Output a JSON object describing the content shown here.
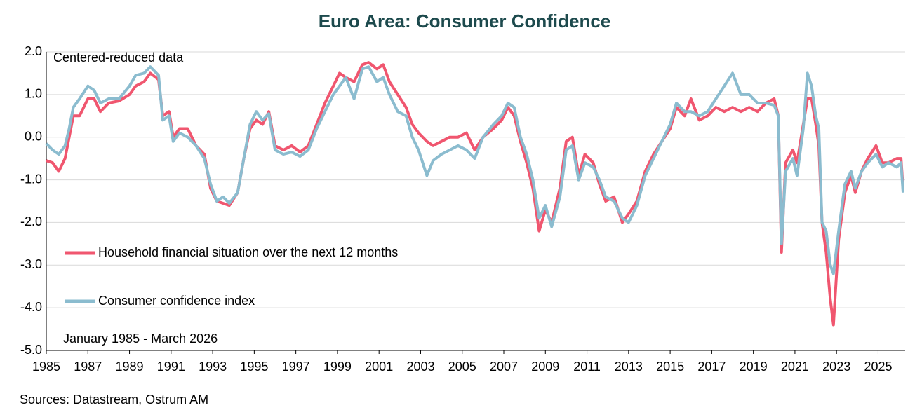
{
  "chart_data": {
    "type": "line",
    "title": "Euro Area:  Consumer Confidence",
    "subtitle": "Centered-reduced data",
    "period_note": "January 1985 - March 2026",
    "source": "Sources: Datastream, Ostrum AM",
    "xlim": [
      1985,
      2026.3
    ],
    "xticks": [
      1985,
      1987,
      1989,
      1991,
      1993,
      1995,
      1997,
      1999,
      2001,
      2003,
      2005,
      2007,
      2009,
      2011,
      2013,
      2015,
      2017,
      2019,
      2021,
      2023,
      2025
    ],
    "ylim": [
      -5,
      2
    ],
    "yticks": [
      {
        "value": 2,
        "label": "2.0"
      },
      {
        "value": 1,
        "label": "1.0"
      },
      {
        "value": 0,
        "label": "0.0"
      },
      {
        "value": -1,
        "label": "-1.0"
      },
      {
        "value": -2,
        "label": "-2.0"
      },
      {
        "value": -3,
        "label": "-3.0"
      },
      {
        "value": -4,
        "label": "-4.0"
      },
      {
        "value": -5,
        "label": "-5.0"
      }
    ],
    "grid": true,
    "x": [
      1985.0,
      1985.3,
      1985.6,
      1985.9,
      1986.1,
      1986.3,
      1986.6,
      1987.0,
      1987.3,
      1987.6,
      1988.0,
      1988.5,
      1989.0,
      1989.3,
      1989.7,
      1990.0,
      1990.4,
      1990.6,
      1990.9,
      1991.1,
      1991.4,
      1991.8,
      1992.2,
      1992.6,
      1992.9,
      1993.2,
      1993.5,
      1993.8,
      1994.2,
      1994.5,
      1994.8,
      1995.1,
      1995.4,
      1995.7,
      1996.0,
      1996.4,
      1996.8,
      1997.2,
      1997.6,
      1998.0,
      1998.4,
      1998.8,
      1999.1,
      1999.4,
      1999.8,
      2000.2,
      2000.5,
      2000.9,
      2001.2,
      2001.5,
      2001.9,
      2002.3,
      2002.6,
      2002.9,
      2003.3,
      2003.6,
      2004.0,
      2004.4,
      2004.8,
      2005.2,
      2005.6,
      2006.0,
      2006.5,
      2006.9,
      2007.2,
      2007.5,
      2007.8,
      2008.1,
      2008.4,
      2008.7,
      2009.0,
      2009.3,
      2009.7,
      2010.0,
      2010.3,
      2010.6,
      2010.9,
      2011.3,
      2011.6,
      2011.9,
      2012.3,
      2012.7,
      2013.0,
      2013.4,
      2013.8,
      2014.2,
      2014.6,
      2015.0,
      2015.3,
      2015.7,
      2016.0,
      2016.4,
      2016.8,
      2017.2,
      2017.6,
      2018.0,
      2018.4,
      2018.8,
      2019.2,
      2019.6,
      2020.0,
      2020.2,
      2020.35,
      2020.55,
      2020.9,
      2021.1,
      2021.4,
      2021.6,
      2021.8,
      2022.0,
      2022.15,
      2022.3,
      2022.5,
      2022.7,
      2022.85,
      2023.1,
      2023.4,
      2023.7,
      2023.9,
      2024.2,
      2024.5,
      2024.9,
      2025.2,
      2025.5,
      2025.9,
      2026.1,
      2026.2
    ],
    "series": [
      {
        "name": "Household financial situation over the next 12 months",
        "color": "#f0566f",
        "values": [
          -0.55,
          -0.6,
          -0.8,
          -0.5,
          0.0,
          0.5,
          0.5,
          0.9,
          0.9,
          0.6,
          0.8,
          0.85,
          1.0,
          1.2,
          1.3,
          1.5,
          1.35,
          0.5,
          0.6,
          0.0,
          0.2,
          0.2,
          -0.2,
          -0.4,
          -1.2,
          -1.5,
          -1.55,
          -1.6,
          -1.3,
          -0.5,
          0.2,
          0.4,
          0.3,
          0.6,
          -0.2,
          -0.3,
          -0.2,
          -0.35,
          -0.2,
          0.3,
          0.8,
          1.2,
          1.5,
          1.4,
          1.3,
          1.7,
          1.75,
          1.6,
          1.7,
          1.3,
          1.0,
          0.7,
          0.3,
          0.1,
          -0.1,
          -0.2,
          -0.1,
          0.0,
          0.0,
          0.1,
          -0.3,
          0.0,
          0.2,
          0.4,
          0.7,
          0.5,
          -0.1,
          -0.6,
          -1.2,
          -2.2,
          -1.7,
          -2.0,
          -1.2,
          -0.1,
          0.0,
          -0.9,
          -0.4,
          -0.6,
          -1.1,
          -1.5,
          -1.4,
          -2.0,
          -1.8,
          -1.5,
          -0.8,
          -0.4,
          -0.1,
          0.2,
          0.7,
          0.5,
          0.9,
          0.4,
          0.5,
          0.7,
          0.6,
          0.7,
          0.6,
          0.7,
          0.6,
          0.8,
          0.9,
          0.5,
          -2.7,
          -0.6,
          -0.3,
          -0.6,
          0.3,
          0.9,
          0.9,
          0.3,
          -0.2,
          -2.0,
          -2.7,
          -3.8,
          -4.4,
          -2.4,
          -1.3,
          -0.9,
          -1.3,
          -0.8,
          -0.5,
          -0.2,
          -0.6,
          -0.6,
          -0.5,
          -0.5,
          -1.2
        ]
      },
      {
        "name": "Consumer confidence index",
        "color": "#8bbccf",
        "values": [
          -0.15,
          -0.3,
          -0.4,
          -0.2,
          0.2,
          0.7,
          0.9,
          1.2,
          1.1,
          0.8,
          0.9,
          0.9,
          1.2,
          1.45,
          1.5,
          1.65,
          1.45,
          0.4,
          0.5,
          -0.1,
          0.1,
          0.0,
          -0.2,
          -0.5,
          -1.1,
          -1.5,
          -1.4,
          -1.55,
          -1.3,
          -0.5,
          0.3,
          0.6,
          0.4,
          0.55,
          -0.3,
          -0.4,
          -0.35,
          -0.45,
          -0.3,
          0.2,
          0.6,
          1.0,
          1.2,
          1.4,
          0.9,
          1.6,
          1.65,
          1.3,
          1.4,
          1.0,
          0.6,
          0.5,
          0.0,
          -0.3,
          -0.9,
          -0.55,
          -0.4,
          -0.3,
          -0.2,
          -0.3,
          -0.5,
          0.0,
          0.3,
          0.5,
          0.8,
          0.7,
          0.0,
          -0.4,
          -1.0,
          -1.9,
          -1.6,
          -2.1,
          -1.4,
          -0.3,
          -0.2,
          -1.0,
          -0.6,
          -0.7,
          -1.0,
          -1.4,
          -1.5,
          -1.9,
          -2.0,
          -1.6,
          -0.9,
          -0.5,
          -0.1,
          0.3,
          0.8,
          0.6,
          0.6,
          0.5,
          0.6,
          0.9,
          1.2,
          1.5,
          1.0,
          1.0,
          0.8,
          0.8,
          0.75,
          0.5,
          -2.5,
          -0.8,
          -0.5,
          -0.9,
          0.2,
          1.5,
          1.2,
          0.5,
          0.2,
          -2.0,
          -2.2,
          -3.0,
          -3.2,
          -2.2,
          -1.1,
          -0.8,
          -1.2,
          -0.8,
          -0.6,
          -0.4,
          -0.7,
          -0.6,
          -0.7,
          -0.6,
          -1.3
        ]
      }
    ]
  }
}
